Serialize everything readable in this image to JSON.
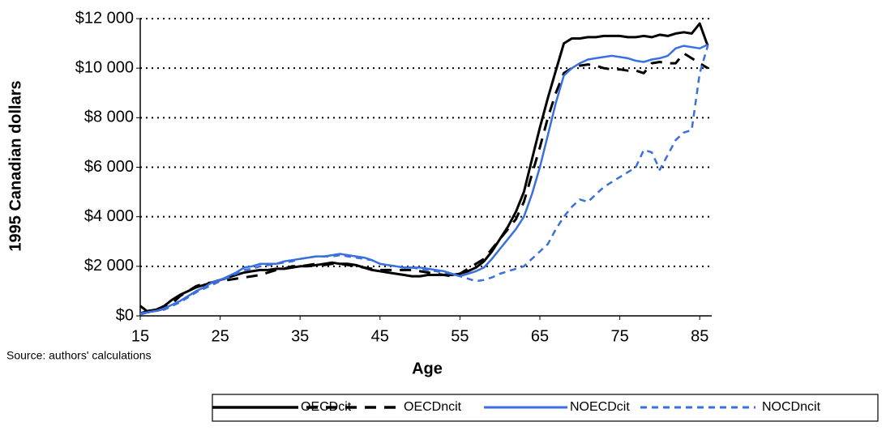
{
  "chart_data": {
    "type": "line",
    "y_label": "1995 Canadian dollars",
    "x_label": "Age",
    "source": "Source: authors' calculations",
    "x": [
      15,
      16,
      17,
      18,
      19,
      20,
      21,
      22,
      23,
      24,
      25,
      26,
      27,
      28,
      29,
      30,
      31,
      32,
      33,
      34,
      35,
      36,
      37,
      38,
      39,
      40,
      41,
      42,
      43,
      44,
      45,
      46,
      47,
      48,
      49,
      50,
      51,
      52,
      53,
      54,
      55,
      56,
      57,
      58,
      59,
      60,
      61,
      62,
      63,
      64,
      65,
      66,
      67,
      68,
      69,
      70,
      71,
      72,
      73,
      74,
      75,
      76,
      77,
      78,
      79,
      80,
      81,
      82,
      83,
      84,
      85,
      86
    ],
    "series": [
      {
        "name": "OECDcit",
        "color": "#000000",
        "style": "solid",
        "values": [
          100,
          200,
          250,
          400,
          650,
          850,
          1000,
          1150,
          1250,
          1350,
          1450,
          1550,
          1650,
          1750,
          1800,
          1850,
          1850,
          1900,
          1900,
          1950,
          2000,
          2000,
          2050,
          2100,
          2150,
          2100,
          2100,
          2050,
          1950,
          1850,
          1800,
          1750,
          1700,
          1650,
          1600,
          1600,
          1650,
          1650,
          1650,
          1650,
          1700,
          1800,
          1950,
          2200,
          2600,
          3100,
          3600,
          4200,
          5000,
          6300,
          7600,
          8800,
          9900,
          11000,
          11200,
          11200,
          11250,
          11250,
          11300,
          11300,
          11300,
          11250,
          11250,
          11300,
          11250,
          11350,
          11300,
          11400,
          11450,
          11400,
          11800,
          10900
        ]
      },
      {
        "name": "OECDncit",
        "color": "#000000",
        "style": "dashed",
        "values": [
          400,
          150,
          200,
          300,
          500,
          800,
          1000,
          1200,
          1300,
          1350,
          1400,
          1450,
          1500,
          1550,
          1600,
          1650,
          1750,
          1850,
          1900,
          2000,
          2000,
          2050,
          2100,
          2050,
          2100,
          2100,
          2050,
          2000,
          1950,
          1900,
          1850,
          1850,
          1850,
          1850,
          1850,
          1800,
          1750,
          1700,
          1650,
          1600,
          1700,
          1900,
          2100,
          2300,
          2700,
          3100,
          3500,
          3900,
          4600,
          5700,
          6800,
          8000,
          9000,
          9800,
          10000,
          10100,
          10150,
          10100,
          10000,
          9950,
          9950,
          9900,
          9900,
          9800,
          10200,
          10250,
          10200,
          10200,
          10600,
          10400,
          10200,
          10000
        ]
      },
      {
        "name": "NOECDcit",
        "color": "#3a6fe0",
        "style": "solid",
        "values": [
          50,
          150,
          200,
          300,
          450,
          600,
          800,
          1000,
          1150,
          1350,
          1450,
          1600,
          1750,
          1950,
          2000,
          2100,
          2100,
          2100,
          2200,
          2250,
          2300,
          2350,
          2400,
          2400,
          2450,
          2500,
          2450,
          2400,
          2350,
          2250,
          2100,
          2050,
          2000,
          1950,
          1950,
          1950,
          1900,
          1850,
          1800,
          1700,
          1600,
          1700,
          1800,
          1950,
          2300,
          2700,
          3100,
          3500,
          4000,
          4900,
          6000,
          7300,
          8600,
          9700,
          10000,
          10200,
          10350,
          10400,
          10450,
          10500,
          10450,
          10400,
          10300,
          10250,
          10350,
          10400,
          10500,
          10800,
          10900,
          10850,
          10800,
          10950
        ]
      },
      {
        "name": "NOCDncit",
        "color": "#3a6fe0",
        "style": "dashed",
        "values": [
          100,
          150,
          200,
          250,
          400,
          550,
          750,
          950,
          1100,
          1250,
          1400,
          1550,
          1700,
          1850,
          1900,
          2000,
          2050,
          2100,
          2150,
          2200,
          2300,
          2350,
          2400,
          2400,
          2400,
          2450,
          2400,
          2350,
          2300,
          2250,
          2100,
          2050,
          2000,
          1950,
          1950,
          1900,
          1850,
          1800,
          1750,
          1700,
          1600,
          1500,
          1400,
          1450,
          1550,
          1700,
          1800,
          1900,
          2000,
          2300,
          2600,
          2900,
          3500,
          4000,
          4400,
          4700,
          4600,
          4900,
          5200,
          5400,
          5600,
          5800,
          6000,
          6700,
          6600,
          5900,
          6500,
          7100,
          7400,
          7500,
          9800,
          10900
        ]
      }
    ],
    "xlim": [
      15,
      86.5
    ],
    "xticks": [
      15,
      25,
      35,
      45,
      55,
      65,
      75,
      85
    ],
    "ylim": [
      0,
      12000
    ],
    "yticks": [
      {
        "value": 0,
        "label": "$0"
      },
      {
        "value": 2000,
        "label": "$2 000"
      },
      {
        "value": 4000,
        "label": "$4 000"
      },
      {
        "value": 6000,
        "label": "$6 000"
      },
      {
        "value": 8000,
        "label": "$8 000"
      },
      {
        "value": 10000,
        "label": "$10 000"
      },
      {
        "value": 12000,
        "label": "$12 000"
      }
    ],
    "grid": true,
    "legend": "bottom"
  }
}
